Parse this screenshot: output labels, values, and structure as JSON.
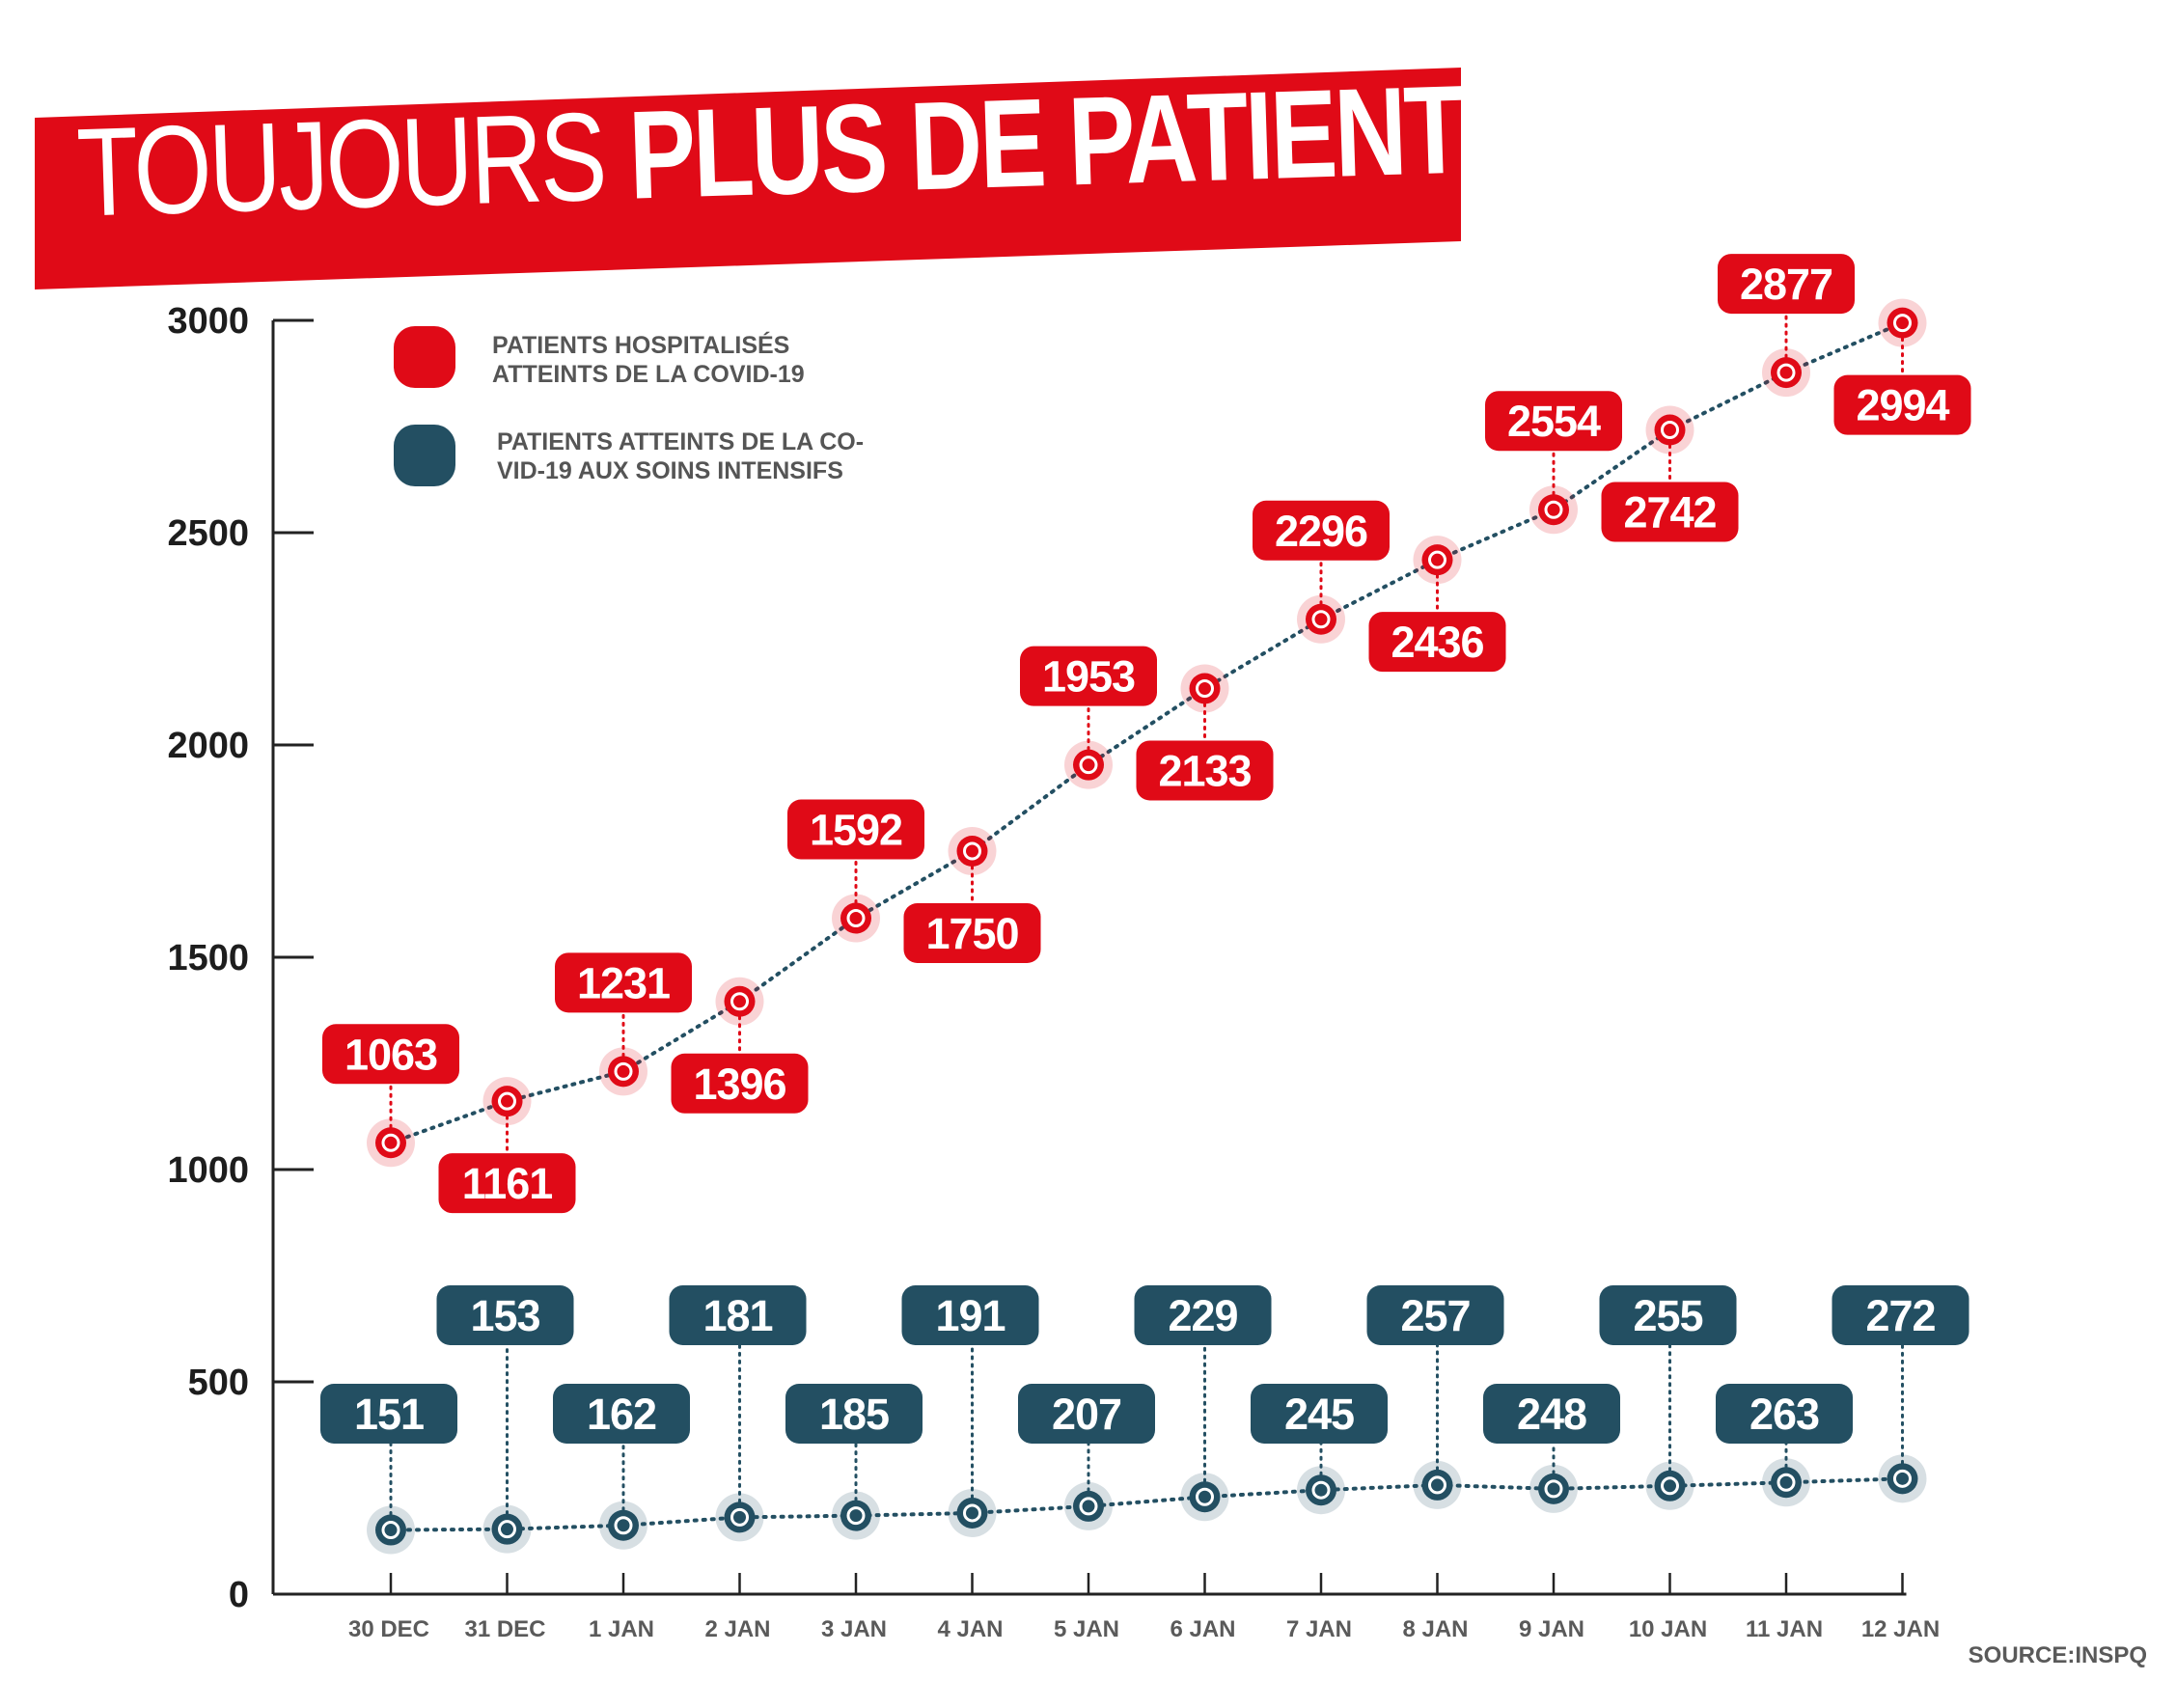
{
  "title": {
    "light": "TOUJOURS",
    "bold": "PLUS DE PATIENTS À L’HÔPITAL"
  },
  "source": "SOURCE:INSPQ",
  "colors": {
    "hospital": "#e00a17",
    "icu": "#234f62",
    "banner": "#e00a17",
    "axis": "#222222",
    "tick_text": "#5a5a5a"
  },
  "chart_data": {
    "type": "line",
    "categories": [
      "30 DEC",
      "31 DEC",
      "1 JAN",
      "2 JAN",
      "3 JAN",
      "4 JAN",
      "5 JAN",
      "6 JAN",
      "7 JAN",
      "8 JAN",
      "9 JAN",
      "10 JAN",
      "11 JAN",
      "12 JAN"
    ],
    "y_ticks": [
      "0",
      "500",
      "1000",
      "1500",
      "2000",
      "2500",
      "3000"
    ],
    "ylim": [
      0,
      3000
    ],
    "grid": false,
    "legend_position": "top-left",
    "series": [
      {
        "name": "PATIENTS HOSPITALISÉS ATTEINTS DE LA COVID-19",
        "legend_lines": [
          "PATIENTS HOSPITALISÉS",
          "ATTEINTS DE LA COVID-19"
        ],
        "color": "#e00a17",
        "values": [
          1063,
          1161,
          1231,
          1396,
          1592,
          1750,
          1953,
          2133,
          2296,
          2436,
          2554,
          2742,
          2877,
          2994
        ],
        "labels": [
          "1063",
          "1161",
          "1231",
          "1396",
          "1592",
          "1750",
          "1953",
          "2133",
          "2296",
          "2436",
          "2554",
          "2742",
          "2877",
          "2994"
        ]
      },
      {
        "name": "PATIENTS ATTEINTS DE LA COVID-19 AUX SOINS INTENSIFS",
        "legend_lines": [
          "PATIENTS ATTEINTS DE LA CO-",
          "VID-19 AUX SOINS INTENSIFS"
        ],
        "color": "#234f62",
        "values": [
          151,
          153,
          162,
          181,
          185,
          191,
          207,
          229,
          245,
          257,
          248,
          255,
          263,
          272
        ],
        "labels": [
          "151",
          "153",
          "162",
          "181",
          "185",
          "191",
          "207",
          "229",
          "245",
          "257",
          "248",
          "255",
          "263",
          "272"
        ]
      }
    ]
  }
}
